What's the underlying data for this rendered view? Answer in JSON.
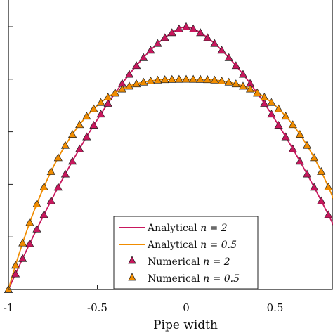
{
  "chart_data": {
    "type": "line",
    "xlabel": "Pipe width",
    "ylabel": "",
    "xlim": [
      -1,
      0.83
    ],
    "ylim": [
      0,
      1.2
    ],
    "xticks": [
      -1,
      -0.5,
      0,
      0.5
    ],
    "xtick_labels": [
      "-1",
      "-0.5",
      "0",
      "0.5"
    ],
    "grid": false,
    "legend_position": "bottom-right",
    "legend": [
      "Analytical",
      "Analytical",
      "Numerical",
      "Numerical"
    ],
    "legend_params": [
      "n = 2",
      "n = 0.5",
      "n = 2",
      "n = 0.5"
    ],
    "series": [
      {
        "kind": "analytical",
        "n": 2,
        "color": "#c8175d",
        "marker": "none"
      },
      {
        "kind": "analytical",
        "n": 0.5,
        "color": "#f08c00",
        "marker": "none"
      },
      {
        "kind": "numerical",
        "n": 2,
        "color": "#c8175d",
        "marker": "triangle"
      },
      {
        "kind": "numerical",
        "n": 0.5,
        "color": "#f08c00",
        "marker": "triangle"
      }
    ],
    "peak_n2": 1.0,
    "peak_n05": 0.8,
    "marker_step": 0.04
  }
}
